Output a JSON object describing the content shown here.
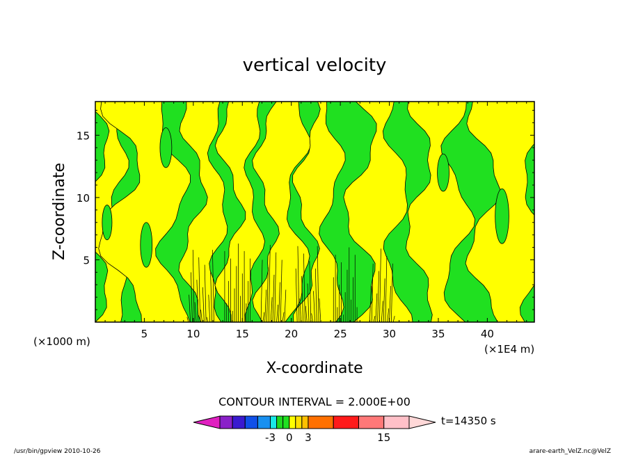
{
  "chart_data": {
    "type": "heatmap",
    "title": "vertical velocity",
    "xlabel": "X-coordinate",
    "ylabel": "Z-coordinate",
    "x_unit_label": "(×1E4 m)",
    "y_unit_label": "(×1000 m)",
    "xlim": [
      0,
      44.8
    ],
    "ylim": [
      0,
      17.7
    ],
    "x_ticks": [
      5,
      10,
      15,
      20,
      25,
      30,
      35,
      40
    ],
    "y_ticks": [
      5,
      10,
      15
    ],
    "x_tick_labels": [
      "5",
      "10",
      "15",
      "20",
      "25",
      "30",
      "35",
      "40"
    ],
    "y_tick_labels": [
      "5",
      "10",
      "15"
    ],
    "contour_interval_text": "CONTOUR INTERVAL = 2.000E+00",
    "time_text": "t=14350 s",
    "colorbar_labels": [
      {
        "text": "-3",
        "value": -3
      },
      {
        "text": "0",
        "value": 0
      },
      {
        "text": "3",
        "value": 3
      },
      {
        "text": "15",
        "value": 15
      }
    ],
    "colorbar_bins": [
      {
        "lo": null,
        "hi": -11,
        "color": "#e020c0"
      },
      {
        "lo": -11,
        "hi": -9,
        "color": "#8a20c8"
      },
      {
        "lo": -9,
        "hi": -7,
        "color": "#3a1ad0"
      },
      {
        "lo": -7,
        "hi": -5,
        "color": "#1050e8"
      },
      {
        "lo": -5,
        "hi": -3,
        "color": "#1890f0"
      },
      {
        "lo": -3,
        "hi": -2,
        "color": "#18e8e8"
      },
      {
        "lo": -2,
        "hi": -1,
        "color": "#20d820"
      },
      {
        "lo": -1,
        "hi": 0,
        "color": "#20e020"
      },
      {
        "lo": 0,
        "hi": 1,
        "color": "#ffff00"
      },
      {
        "lo": 1,
        "hi": 2,
        "color": "#ffe000"
      },
      {
        "lo": 2,
        "hi": 3,
        "color": "#ffc000"
      },
      {
        "lo": 3,
        "hi": 7,
        "color": "#ff7000"
      },
      {
        "lo": 7,
        "hi": 11,
        "color": "#ff1a1a"
      },
      {
        "lo": 11,
        "hi": 15,
        "color": "#ff7878"
      },
      {
        "lo": 15,
        "hi": 19,
        "color": "#ffc0c8"
      },
      {
        "lo": 19,
        "hi": null,
        "color": "#ffd8d8"
      }
    ],
    "field_colors": {
      "positive": "#ffff00",
      "negative": "#20e020",
      "contour": "#000000"
    },
    "grid": false
  },
  "footer": {
    "left": "/usr/bin/gpview   2010-10-26",
    "right": "arare-earth_VelZ.nc@VelZ"
  }
}
